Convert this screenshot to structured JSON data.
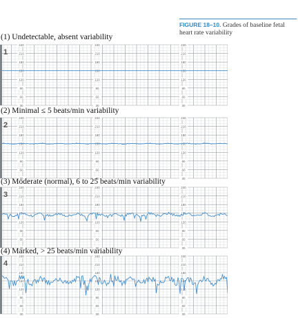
{
  "caption": {
    "figure_label": "FIGURE 18–10.",
    "text": "Grades of baseline fetal heart rate variability"
  },
  "panels": [
    {
      "label": "(1) Undetectable, absent variability",
      "number": "1",
      "baseline_bpm": 150,
      "amplitude_bpm": 0
    },
    {
      "label": "(2) Minimal ≤ 5 beats/min variability",
      "number": "2",
      "baseline_bpm": 150,
      "amplitude_bpm": 4
    },
    {
      "label": "(3) Moderate (normal), 6 to 25 beats/min variability",
      "number": "3",
      "baseline_bpm": 145,
      "amplitude_bpm": 15
    },
    {
      "label": "(4) Marked, > 25 beats/min variability",
      "number": "4",
      "baseline_bpm": 150,
      "amplitude_bpm": 35
    }
  ],
  "scale_labels": [
    "240",
    "210",
    "180",
    "150",
    "120",
    "90",
    "60",
    "30"
  ],
  "colors": {
    "trace": "#3f8fd4",
    "grid_major": "#9aa0a6",
    "grid_minor": "#d7d9db",
    "caption_accent": "#2f8bd2"
  }
}
